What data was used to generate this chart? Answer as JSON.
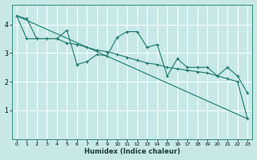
{
  "title": "",
  "xlabel": "Humidex (Indice chaleur)",
  "ylabel": "",
  "bg_color": "#c8e8e8",
  "grid_color": "#ffffff",
  "line_color": "#1a7a6e",
  "xlim": [
    -0.5,
    23.5
  ],
  "ylim": [
    0,
    4.7
  ],
  "yticks": [
    1,
    2,
    3,
    4
  ],
  "xticks": [
    0,
    1,
    2,
    3,
    4,
    5,
    6,
    7,
    8,
    9,
    10,
    11,
    12,
    13,
    14,
    15,
    16,
    17,
    18,
    19,
    20,
    21,
    22,
    23
  ],
  "line1_x": [
    0,
    1,
    2,
    3,
    4,
    5,
    6,
    7,
    8,
    9,
    10,
    11,
    12,
    13,
    14,
    15,
    16,
    17,
    18,
    19,
    20,
    21,
    22,
    23
  ],
  "line1_y": [
    4.3,
    4.2,
    3.5,
    3.5,
    3.5,
    3.8,
    2.6,
    2.7,
    2.95,
    2.9,
    3.55,
    3.75,
    3.75,
    3.2,
    3.3,
    2.2,
    2.8,
    2.5,
    2.5,
    2.5,
    2.2,
    2.5,
    2.2,
    1.6
  ],
  "line2_x": [
    0,
    1,
    2,
    3,
    4,
    5,
    6,
    7,
    8,
    9,
    10,
    11,
    12,
    13,
    14,
    15,
    16,
    17,
    18,
    19,
    20,
    21,
    22,
    23
  ],
  "line2_y": [
    4.3,
    3.5,
    3.5,
    3.5,
    3.5,
    3.35,
    3.3,
    3.2,
    3.1,
    3.05,
    2.95,
    2.85,
    2.75,
    2.65,
    2.6,
    2.5,
    2.45,
    2.4,
    2.35,
    2.3,
    2.2,
    2.1,
    2.0,
    0.7
  ],
  "line3_x": [
    0,
    23
  ],
  "line3_y": [
    4.3,
    0.7
  ]
}
